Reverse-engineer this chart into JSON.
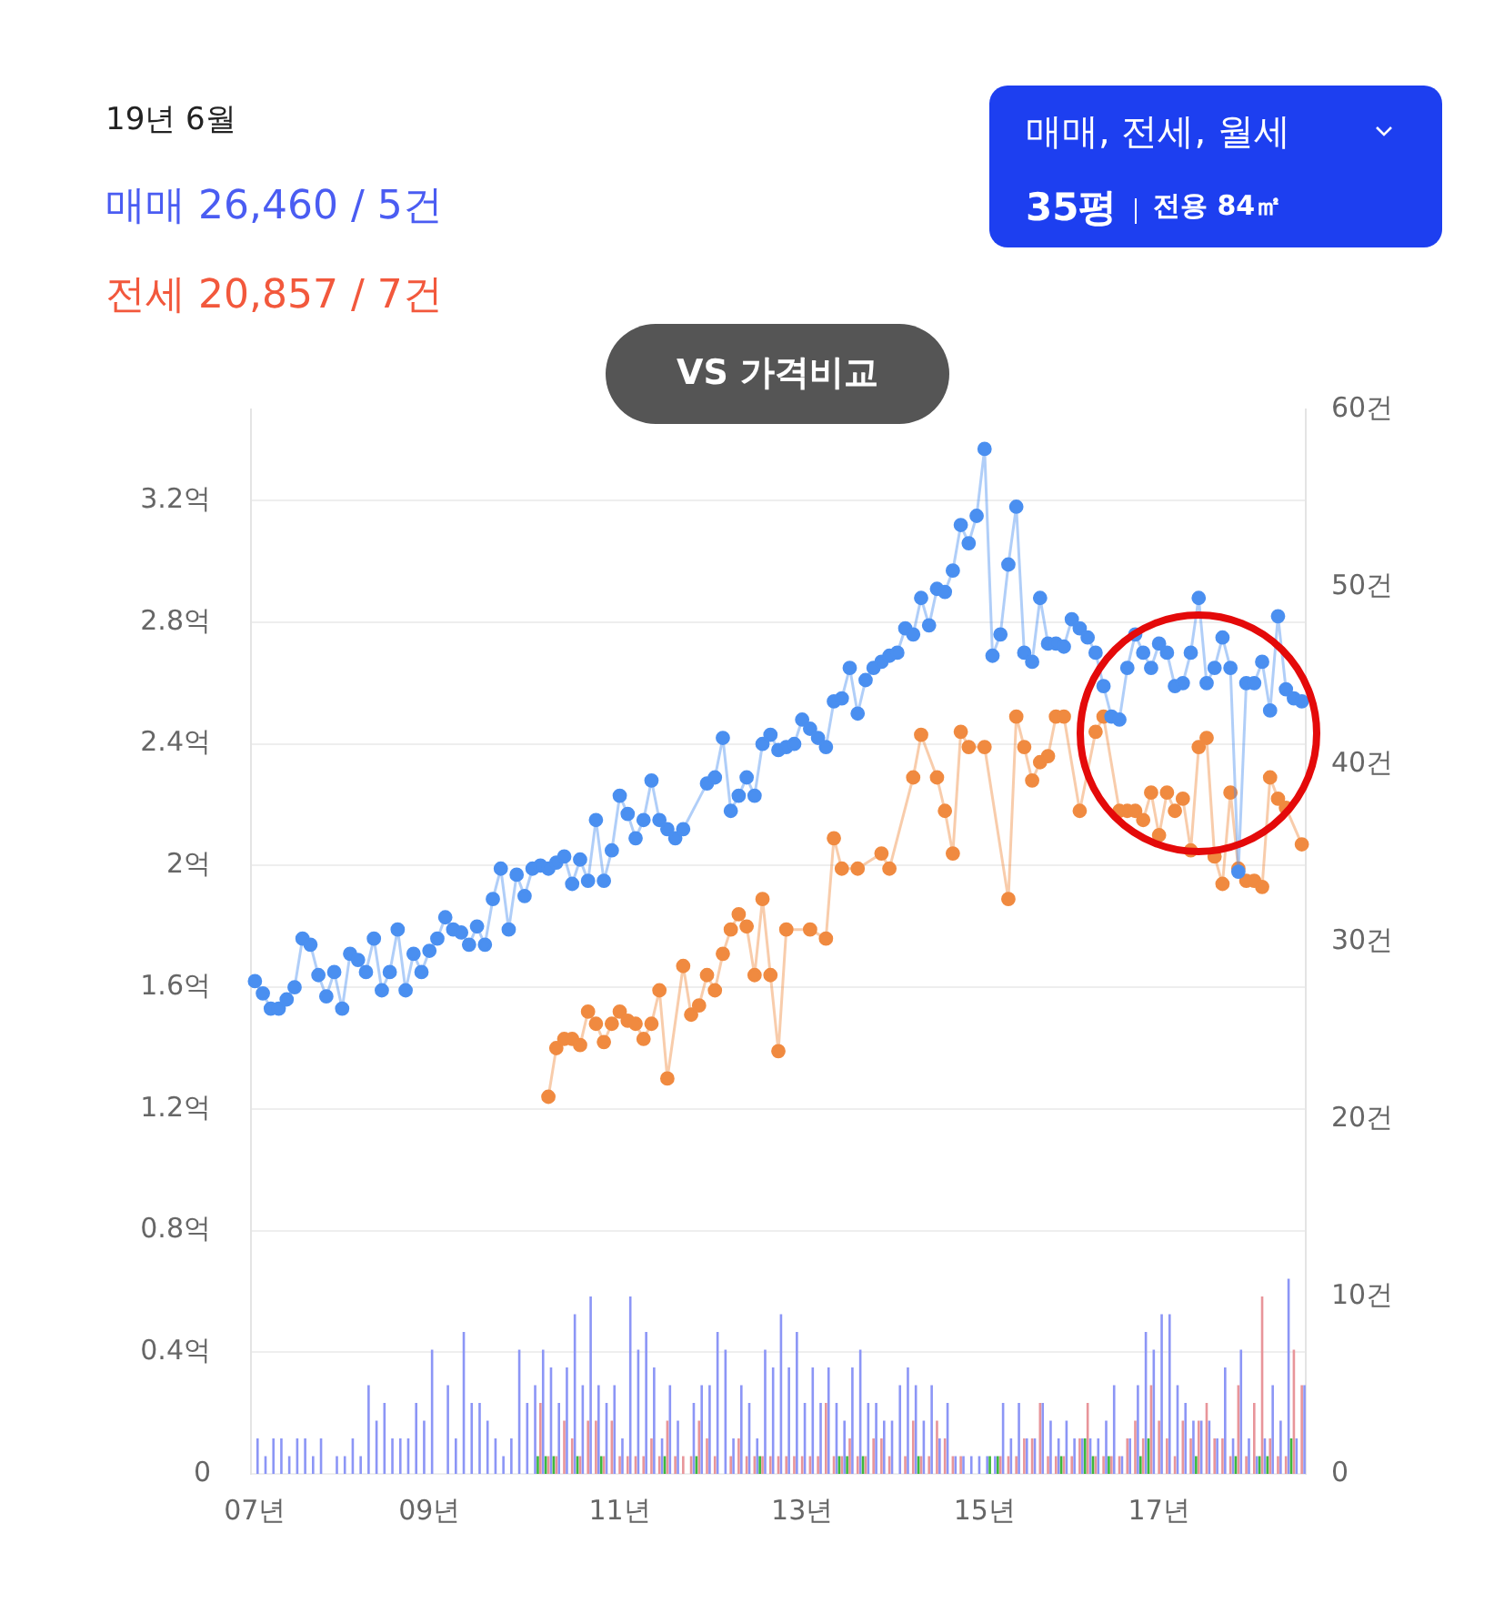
{
  "chart_data": {
    "type": "line",
    "title": "19년 6월",
    "annotations": [
      "매매 26,460 / 5건",
      "전세 20,857 / 7건",
      "매매, 전세, 월세",
      "35평",
      "전용 84㎡",
      "VS 가격비교"
    ],
    "categories": [
      "07년",
      null,
      null,
      null,
      null,
      null,
      null,
      null,
      null,
      null,
      null,
      null,
      null,
      null,
      null,
      null,
      null,
      null,
      null,
      null,
      null,
      null,
      "09년",
      null,
      null,
      null,
      null,
      null,
      null,
      null,
      null,
      null,
      null,
      null,
      null,
      null,
      null,
      null,
      null,
      null,
      null,
      null,
      null,
      null,
      null,
      null,
      "11년",
      null,
      null,
      null,
      null,
      null,
      null,
      null,
      null,
      null,
      null,
      null,
      null,
      null,
      null,
      null,
      null,
      null,
      null,
      null,
      null,
      null,
      null,
      "13년",
      null,
      null,
      null,
      null,
      null,
      null,
      null,
      null,
      null,
      null,
      null,
      null,
      null,
      null,
      null,
      null,
      null,
      null,
      null,
      null,
      null,
      null,
      "15년",
      null,
      null,
      null,
      null,
      null,
      null,
      null,
      null,
      null,
      null,
      null,
      null,
      null,
      null,
      null,
      null,
      null,
      null,
      null,
      null,
      null,
      "17년",
      null,
      null,
      null,
      null,
      null,
      null,
      null,
      null,
      null,
      null,
      null,
      null,
      null,
      null,
      null,
      null,
      null,
      null
    ],
    "series": [
      {
        "color": "#4a8ff0",
        "values": [
          1.62,
          1.58,
          1.53,
          1.53,
          1.56,
          1.6,
          1.76,
          1.74,
          1.64,
          1.57,
          1.65,
          1.53,
          1.71,
          1.69,
          1.65,
          1.76,
          1.59,
          1.65,
          1.79,
          1.59,
          1.71,
          1.65,
          1.72,
          1.76,
          1.83,
          1.79,
          1.78,
          1.74,
          1.8,
          1.74,
          1.89,
          1.99,
          1.79,
          1.97,
          1.9,
          1.99,
          2.0,
          1.99,
          2.01,
          2.03,
          1.94,
          2.02,
          1.95,
          2.15,
          1.95,
          2.05,
          2.23,
          2.17,
          2.09,
          2.15,
          2.28,
          2.15,
          2.12,
          2.09,
          2.12,
          null,
          null,
          2.27,
          2.29,
          2.42,
          2.18,
          2.23,
          2.29,
          2.23,
          2.4,
          2.43,
          2.38,
          2.39,
          2.4,
          2.48,
          2.45,
          2.42,
          2.39,
          2.54,
          2.55,
          2.65,
          2.5,
          2.61,
          2.65,
          2.67,
          2.69,
          2.7,
          2.78,
          2.76,
          2.88,
          2.79,
          2.91,
          2.9,
          2.97,
          3.12,
          3.06,
          3.15,
          3.37,
          2.69,
          2.76,
          2.99,
          3.18,
          2.7,
          2.67,
          2.88,
          2.73,
          2.73,
          2.72,
          2.81,
          2.78,
          2.75,
          2.7,
          2.59,
          2.49,
          2.48,
          2.65,
          2.76,
          2.7,
          2.65,
          2.73,
          2.7,
          2.59,
          2.6,
          2.7,
          2.88,
          2.6,
          2.65,
          2.75,
          2.65,
          1.98,
          2.6,
          2.6,
          2.67,
          2.51,
          2.82,
          2.58,
          2.55,
          2.54
        ]
      },
      {
        "color": "#f08a40",
        "values": [
          null,
          null,
          null,
          null,
          null,
          null,
          null,
          null,
          null,
          null,
          null,
          null,
          null,
          null,
          null,
          null,
          null,
          null,
          null,
          null,
          null,
          null,
          null,
          null,
          null,
          null,
          null,
          null,
          null,
          null,
          null,
          null,
          null,
          null,
          null,
          null,
          null,
          1.24,
          1.4,
          1.43,
          1.43,
          1.41,
          1.52,
          1.48,
          1.42,
          1.48,
          1.52,
          1.49,
          1.48,
          1.43,
          1.48,
          1.59,
          1.3,
          null,
          1.67,
          1.51,
          1.54,
          1.64,
          1.59,
          1.71,
          1.79,
          1.84,
          1.8,
          1.64,
          1.89,
          1.64,
          1.39,
          1.79,
          null,
          null,
          1.79,
          null,
          1.76,
          2.09,
          1.99,
          null,
          1.99,
          null,
          null,
          2.04,
          1.99,
          null,
          null,
          2.29,
          2.43,
          null,
          2.29,
          2.18,
          2.04,
          2.44,
          2.39,
          null,
          2.39,
          null,
          null,
          1.89,
          2.49,
          2.39,
          2.28,
          2.34,
          2.36,
          2.49,
          2.49,
          null,
          2.18,
          null,
          2.44,
          2.49,
          null,
          2.18,
          2.18,
          2.18,
          2.15,
          2.24,
          2.1,
          2.24,
          2.18,
          2.22,
          2.05,
          2.39,
          2.42,
          2.03,
          1.94,
          2.24,
          1.99,
          1.95,
          1.95,
          1.93,
          2.29,
          2.22,
          2.19,
          null,
          2.07
        ]
      },
      {
        "type": "bar",
        "axis": "y2",
        "color": "#8c96f6",
        "values": [
          2,
          1,
          2,
          2,
          1,
          2,
          2,
          1,
          2,
          null,
          1,
          1,
          2,
          1,
          5,
          3,
          4,
          2,
          2,
          2,
          4,
          3,
          7,
          null,
          5,
          2,
          8,
          4,
          4,
          3,
          2,
          1,
          2,
          7,
          4,
          5,
          7,
          6,
          4,
          6,
          9,
          5,
          10,
          5,
          4,
          5,
          2,
          10,
          7,
          8,
          6,
          2,
          5,
          3,
          null,
          4,
          5,
          5,
          8,
          7,
          2,
          5,
          4,
          2,
          7,
          6,
          9,
          6,
          8,
          4,
          6,
          4,
          6,
          4,
          3,
          6,
          7,
          4,
          4,
          3,
          3,
          5,
          6,
          5,
          3,
          5,
          2,
          4,
          1,
          1,
          1,
          1,
          1,
          1,
          4,
          2,
          4,
          2,
          2,
          4,
          3,
          2,
          3,
          2,
          2,
          2,
          2,
          3,
          5,
          1,
          2,
          5,
          8,
          7,
          9,
          9,
          5,
          4,
          3,
          3,
          3,
          2,
          6,
          2,
          7,
          2,
          1,
          2,
          5,
          3,
          11,
          2,
          5
        ]
      },
      {
        "type": "bar",
        "axis": "y2",
        "color": "#e8959a",
        "values": [
          null,
          null,
          null,
          null,
          null,
          null,
          null,
          null,
          null,
          null,
          null,
          null,
          null,
          null,
          null,
          null,
          null,
          null,
          null,
          null,
          null,
          null,
          null,
          null,
          null,
          null,
          null,
          null,
          null,
          null,
          null,
          null,
          null,
          null,
          null,
          null,
          4,
          1,
          1,
          3,
          2,
          1,
          3,
          3,
          1,
          3,
          1,
          1,
          1,
          1,
          2,
          1,
          3,
          1,
          1,
          1,
          3,
          2,
          1,
          null,
          1,
          2,
          1,
          1,
          1,
          1,
          1,
          1,
          1,
          1,
          1,
          1,
          4,
          1,
          1,
          2,
          1,
          1,
          2,
          2,
          1,
          null,
          1,
          3,
          1,
          1,
          3,
          2,
          1,
          1,
          null,
          null,
          null,
          null,
          1,
          1,
          1,
          2,
          2,
          4,
          1,
          1,
          1,
          1,
          2,
          4,
          1,
          1,
          1,
          1,
          2,
          3,
          2,
          5,
          3,
          2,
          1,
          3,
          2,
          3,
          4,
          2,
          2,
          1,
          5,
          1,
          4,
          10,
          2,
          1,
          1,
          7,
          5
        ]
      },
      {
        "type": "bar",
        "axis": "y2",
        "color": "#3cb83c",
        "values": [
          null,
          null,
          null,
          null,
          null,
          null,
          null,
          null,
          null,
          null,
          null,
          null,
          null,
          null,
          null,
          null,
          null,
          null,
          null,
          null,
          null,
          null,
          null,
          null,
          null,
          null,
          null,
          null,
          null,
          null,
          null,
          null,
          null,
          null,
          null,
          null,
          1,
          1,
          1,
          null,
          null,
          1,
          null,
          null,
          1,
          null,
          null,
          null,
          null,
          null,
          null,
          null,
          1,
          null,
          null,
          null,
          1,
          null,
          null,
          null,
          null,
          null,
          null,
          null,
          1,
          null,
          null,
          null,
          null,
          null,
          null,
          null,
          null,
          null,
          1,
          1,
          null,
          1,
          null,
          null,
          null,
          null,
          null,
          null,
          1,
          null,
          null,
          null,
          null,
          null,
          null,
          null,
          null,
          1,
          1,
          null,
          null,
          null,
          null,
          null,
          null,
          null,
          1,
          null,
          null,
          2,
          1,
          null,
          1,
          null,
          null,
          null,
          1,
          2,
          null,
          null,
          null,
          null,
          null,
          1,
          null,
          null,
          null,
          null,
          1,
          null,
          null,
          1,
          1,
          null,
          null,
          2,
          null
        ]
      }
    ],
    "ylim": [
      0,
      3.5
    ],
    "yticks": [
      {
        "value": 0,
        "label": "0"
      },
      {
        "value": 0.4,
        "label": "0.4억"
      },
      {
        "value": 0.8,
        "label": "0.8억"
      },
      {
        "value": 1.2,
        "label": "1.2억"
      },
      {
        "value": 1.6,
        "label": "1.6억"
      },
      {
        "value": 2,
        "label": "2억"
      },
      {
        "value": 2.4,
        "label": "2.4억"
      },
      {
        "value": 2.8,
        "label": "2.8억"
      },
      {
        "value": 3.2,
        "label": "3.2억"
      }
    ],
    "y2lim": [
      0,
      60
    ],
    "y2ticks": [
      {
        "value": 0,
        "label": "0"
      },
      {
        "value": 10,
        "label": "10건"
      },
      {
        "value": 20,
        "label": "20건"
      },
      {
        "value": 30,
        "label": "30건"
      },
      {
        "value": 40,
        "label": "40건"
      },
      {
        "value": 50,
        "label": "50건"
      },
      {
        "value": 60,
        "label": "60건"
      }
    ],
    "grid": "y",
    "marker": "circle",
    "line_style": "solid"
  }
}
